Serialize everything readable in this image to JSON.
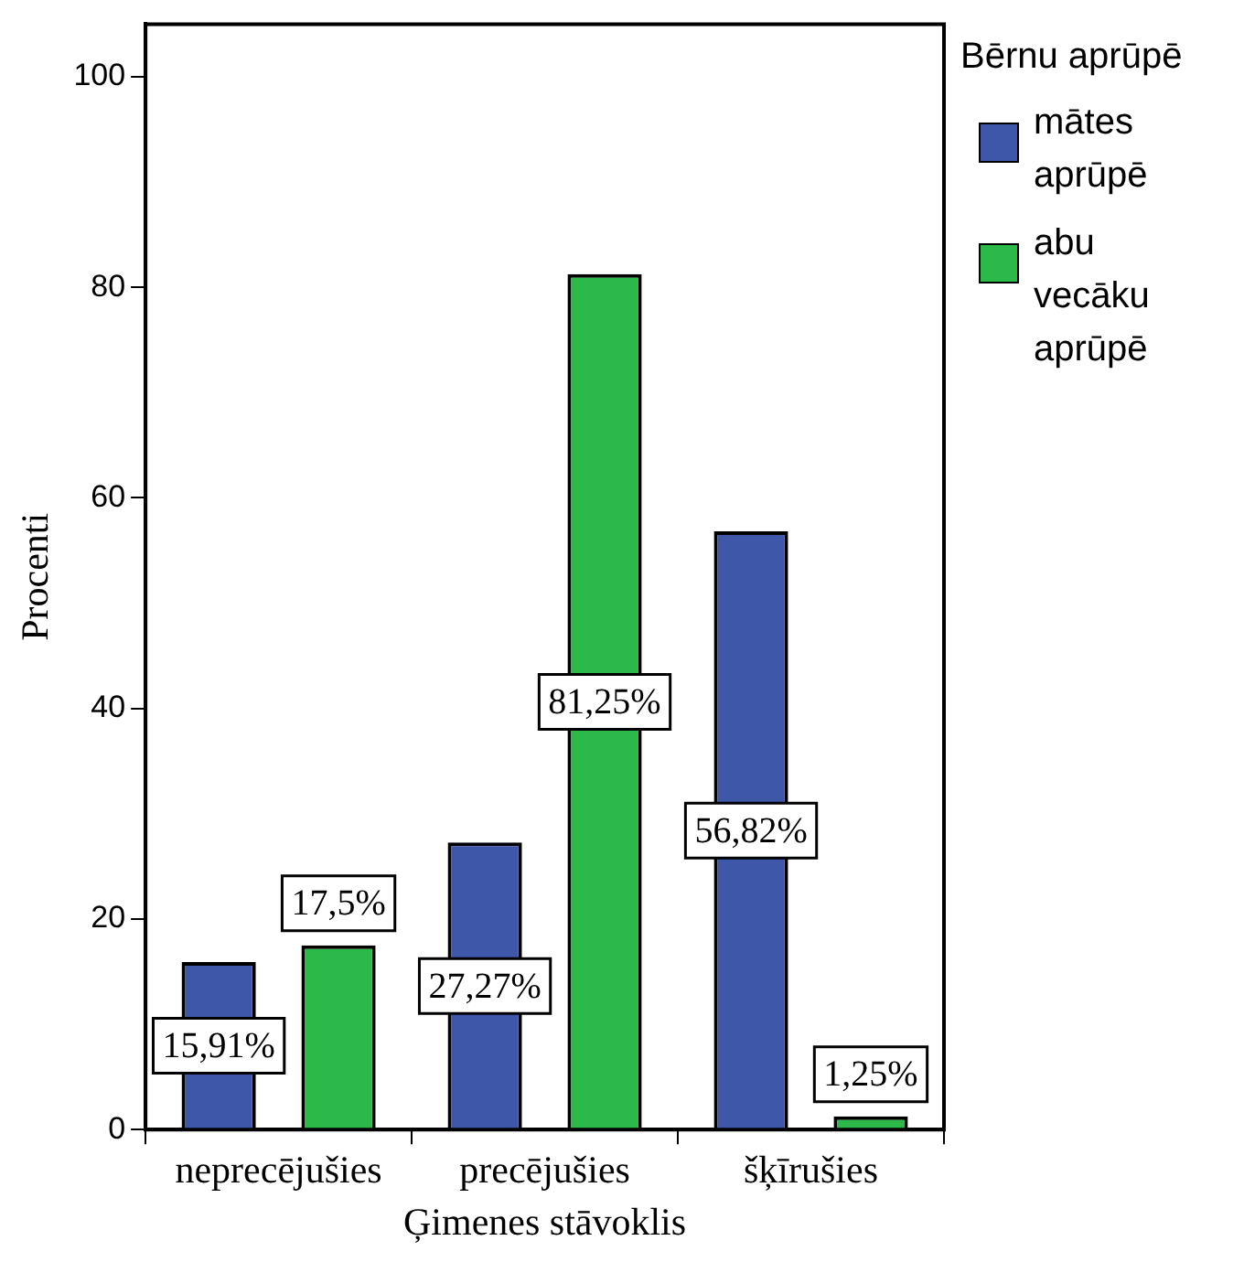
{
  "chart_data": {
    "type": "bar",
    "xlabel": "Ģimenes stāvoklis",
    "ylabel": "Procenti",
    "legend_title": "Bērnu aprūpē",
    "categories": [
      "neprecējušies",
      "precējušies",
      "šķīrušies"
    ],
    "series": [
      {
        "name": "mātes aprūpē",
        "color": "#3f57a8",
        "values": [
          15.91,
          27.27,
          56.82
        ],
        "value_labels": [
          "15,91%",
          "27,27%",
          "56,82%"
        ]
      },
      {
        "name": "abu vecāku aprūpē",
        "color": "#2db84a",
        "values": [
          17.5,
          81.25,
          1.25
        ],
        "value_labels": [
          "17,5%",
          "81,25%",
          "1,25%"
        ]
      }
    ],
    "ylim": [
      0,
      105
    ],
    "yticks": [
      0,
      20,
      40,
      60,
      80,
      100
    ],
    "grid": false,
    "legend": "right"
  }
}
